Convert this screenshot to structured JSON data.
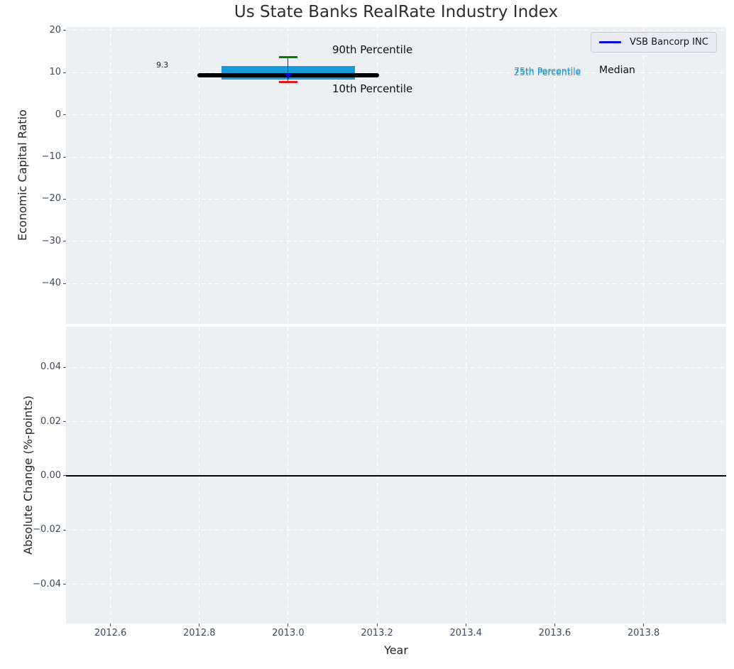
{
  "chart_data": [
    {
      "type": "boxplot",
      "title": "Us State Banks RealRate Industry Index",
      "ylabel": "Economic Capital Ratio",
      "grid": true,
      "legend_position": "upper right",
      "xlim": [
        2012.5,
        2013.986
      ],
      "ylim": [
        -49.6,
        20.84
      ],
      "xticks": [
        2012.6,
        2012.8,
        2013.0,
        2013.2,
        2013.4,
        2013.6,
        2013.8
      ],
      "xtick_labels": [
        "2012.6",
        "2012.8",
        "2013.0",
        "2013.2",
        "2013.4",
        "2013.6",
        "2013.8"
      ],
      "yticks": [
        20,
        10,
        0,
        -10,
        -20,
        -30,
        -40
      ],
      "ytick_labels": [
        "20",
        "10",
        "0",
        "−10",
        "−20",
        "−30",
        "−40"
      ],
      "box": {
        "year": 2013.0,
        "p90": 13.6,
        "p75": 11.6,
        "median": 9.3,
        "p25": 8.3,
        "p10": 7.7,
        "company_value": 9.3,
        "box_x_span": [
          2012.85,
          2013.15
        ],
        "median_x_span": [
          2012.8,
          2013.2
        ]
      },
      "legend": {
        "label": "VSB Bancorp INC",
        "line_color": "#0000dd"
      },
      "annotations": {
        "value_label": "9.3",
        "p90_label": "90th Percentile",
        "p10_label": "10th Percentile",
        "p75_label": "75th Percentile",
        "p25_label": "25th Percentile",
        "median_label": "Median"
      },
      "colors": {
        "iqr_box": "#149bd8",
        "median_line": "#000000",
        "p90_cap": "#008000",
        "p10_cap": "#e41a1c",
        "whisker": "#3a3a3a",
        "company_marker": "#0000dd",
        "percentile_text": "#1b9cd6",
        "plot_bg": "#eceff1",
        "grid": "#ffffff",
        "tick_text": "#3d4a5c"
      }
    },
    {
      "type": "line",
      "ylabel": "Absolute Change (%-points)",
      "xlabel": "Year",
      "grid": true,
      "xlim": [
        2012.5,
        2013.986
      ],
      "ylim": [
        -0.0545,
        0.055
      ],
      "yticks": [
        0.04,
        0.02,
        0.0,
        -0.02,
        -0.04
      ],
      "ytick_labels": [
        "0.04",
        "0.02",
        "0.00",
        "−0.02",
        "−0.04"
      ],
      "zero_line_y": 0.0,
      "series": []
    }
  ]
}
